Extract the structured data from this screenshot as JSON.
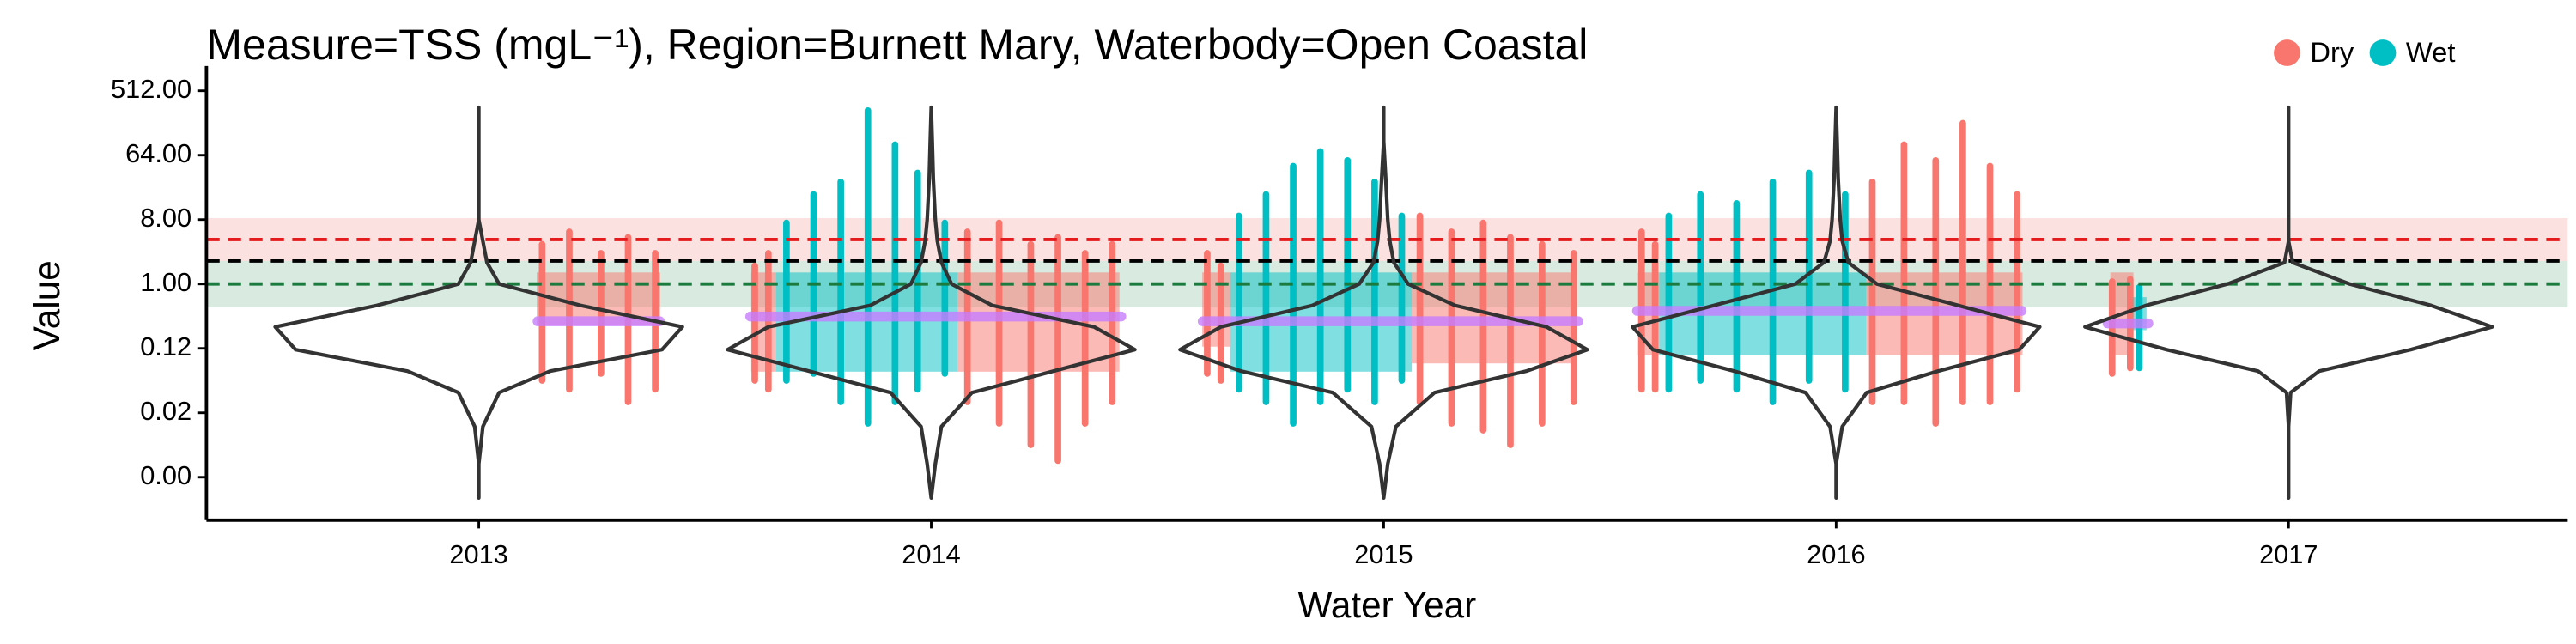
{
  "chart_data": {
    "type": "violin-strip",
    "title": "Measure=TSS (mgL⁻¹), Region=Burnett Mary, Waterbody=Open Coastal",
    "x_label": "Water Year",
    "y_label": "Value",
    "log_scale": true,
    "legend": "top-right",
    "xlim": [
      2012.398,
      2017.617
    ],
    "xticks": [
      2013,
      2014,
      2015,
      2016,
      2017
    ],
    "ylim": [
      0.000488,
      871
    ],
    "yticks": [
      {
        "value": 512,
        "label": "512.00"
      },
      {
        "value": 64,
        "label": "64.00"
      },
      {
        "value": 8,
        "label": "8.00"
      },
      {
        "value": 1,
        "label": "1.00"
      },
      {
        "value": 0.125,
        "label": "0.12"
      },
      {
        "value": 0.015625,
        "label": "0.02"
      },
      {
        "value": 0.001953125,
        "label": "0.00"
      }
    ],
    "bands": [
      {
        "lower": 2.1,
        "upper": 8.4,
        "color": "#f8b4b4"
      },
      {
        "lower": 0.47,
        "upper": 2.1,
        "color": "#9fcdb5"
      }
    ],
    "reference_lines": [
      {
        "value": 4.2,
        "color": "#e41a1c"
      },
      {
        "value": 2.1,
        "color": "#000000"
      },
      {
        "value": 1.0,
        "color": "#1b7a3e"
      }
    ],
    "series": [
      {
        "name": "Dry",
        "color": "#F8766D",
        "x": [
          2013.14,
          2013.2,
          2013.27,
          2013.33,
          2013.39,
          2013.61,
          2013.64,
          2014.08,
          2014.15,
          2014.22,
          2014.28,
          2014.34,
          2014.4,
          2014.61,
          2014.64,
          2015.08,
          2015.15,
          2015.22,
          2015.28,
          2015.35,
          2015.42,
          2015.57,
          2015.6,
          2016.08,
          2016.15,
          2016.22,
          2016.28,
          2016.34,
          2016.4,
          2016.61,
          2016.65
        ],
        "low": [
          0.04,
          0.03,
          0.05,
          0.02,
          0.03,
          0.04,
          0.03,
          0.02,
          0.01,
          0.005,
          0.003,
          0.01,
          0.02,
          0.05,
          0.04,
          0.02,
          0.01,
          0.008,
          0.005,
          0.01,
          0.02,
          0.03,
          0.03,
          0.02,
          0.02,
          0.01,
          0.02,
          0.02,
          0.03,
          0.05,
          0.06
        ],
        "high": [
          4,
          6,
          3,
          5,
          3,
          2,
          3,
          6,
          8,
          4,
          5,
          3,
          4,
          3,
          2,
          10,
          6,
          8,
          5,
          4,
          3,
          6,
          4,
          30,
          100,
          60,
          200,
          50,
          20,
          1.2,
          1.3
        ],
        "boxes": {
          "x0": [
            2013.128,
            2013.602,
            2014.058,
            2014.599,
            2015.062,
            2015.562,
            2016.066,
            2016.606
          ],
          "x1": [
            2013.401,
            2013.657,
            2014.416,
            2014.661,
            2015.427,
            2015.609,
            2016.412,
            2016.657
          ],
          "lower": [
            0.263,
            0.059,
            0.059,
            0.132,
            0.077,
            0.101,
            0.101,
            0.101
          ],
          "upper": [
            1.45,
            1.45,
            1.45,
            1.45,
            1.45,
            1.45,
            1.45,
            1.45
          ]
        }
      },
      {
        "name": "Wet",
        "color": "#00BFC4",
        "x": [
          2013.68,
          2013.74,
          2013.8,
          2013.86,
          2013.92,
          2013.97,
          2014.03,
          2014.68,
          2014.74,
          2014.8,
          2014.86,
          2014.92,
          2014.98,
          2015.04,
          2015.63,
          2015.7,
          2015.78,
          2015.86,
          2015.94,
          2016.02,
          2016.67
        ],
        "low": [
          0.04,
          0.05,
          0.02,
          0.01,
          0.02,
          0.03,
          0.05,
          0.03,
          0.02,
          0.01,
          0.02,
          0.03,
          0.02,
          0.04,
          0.03,
          0.04,
          0.03,
          0.02,
          0.04,
          0.03,
          0.06
        ],
        "high": [
          8,
          20,
          30,
          300,
          100,
          40,
          8,
          10,
          20,
          50,
          80,
          60,
          30,
          10,
          10,
          20,
          15,
          30,
          40,
          20,
          1
        ],
        "boxes": {
          "x0": [
            2013.657,
            2014.661,
            2015.609,
            2016.657
          ],
          "x1": [
            2014.058,
            2015.062,
            2016.066,
            2016.686
          ],
          "lower": [
            0.059,
            0.059,
            0.101,
            0.225
          ],
          "upper": [
            1.45,
            1.45,
            1.45,
            0.653
          ]
        }
      }
    ],
    "trend": {
      "color": "#c77cff",
      "x": [
        2013.13,
        2013.4,
        null,
        2013.6,
        2014.42,
        null,
        2014.6,
        2015.43,
        null,
        2015.56,
        2016.41,
        null,
        2016.6,
        2016.69
      ],
      "values": [
        0.3,
        0.3,
        null,
        0.35,
        0.35,
        null,
        0.3,
        0.3,
        null,
        0.42,
        0.42,
        null,
        0.28,
        0.28
      ]
    },
    "violin_grid": [
      0.001,
      0.003,
      0.01,
      0.03,
      0.06,
      0.12,
      0.25,
      0.5,
      1,
      2,
      4,
      8,
      30,
      100,
      300
    ],
    "violins": [
      {
        "x": 2013,
        "density": [
          0,
          0,
          0.02,
          0.1,
          0.35,
          0.9,
          1,
          0.5,
          0.1,
          0.04,
          0.02,
          0,
          0,
          0,
          0
        ]
      },
      {
        "x": 2014,
        "density": [
          0,
          0.02,
          0.05,
          0.2,
          0.6,
          1,
          0.8,
          0.3,
          0.1,
          0.05,
          0.03,
          0.02,
          0.01,
          0.005,
          0
        ]
      },
      {
        "x": 2015,
        "density": [
          0,
          0.02,
          0.06,
          0.25,
          0.7,
          1,
          0.8,
          0.35,
          0.12,
          0.05,
          0.03,
          0.02,
          0.01,
          0,
          0
        ]
      },
      {
        "x": 2016,
        "density": [
          0,
          0,
          0.03,
          0.15,
          0.5,
          0.9,
          1,
          0.6,
          0.2,
          0.06,
          0.03,
          0.02,
          0.01,
          0.005,
          0
        ]
      },
      {
        "x": 2017,
        "density": [
          0,
          0,
          0,
          0.01,
          0.15,
          0.6,
          1,
          0.7,
          0.3,
          0.02,
          0,
          0,
          0,
          0,
          0
        ]
      }
    ]
  }
}
